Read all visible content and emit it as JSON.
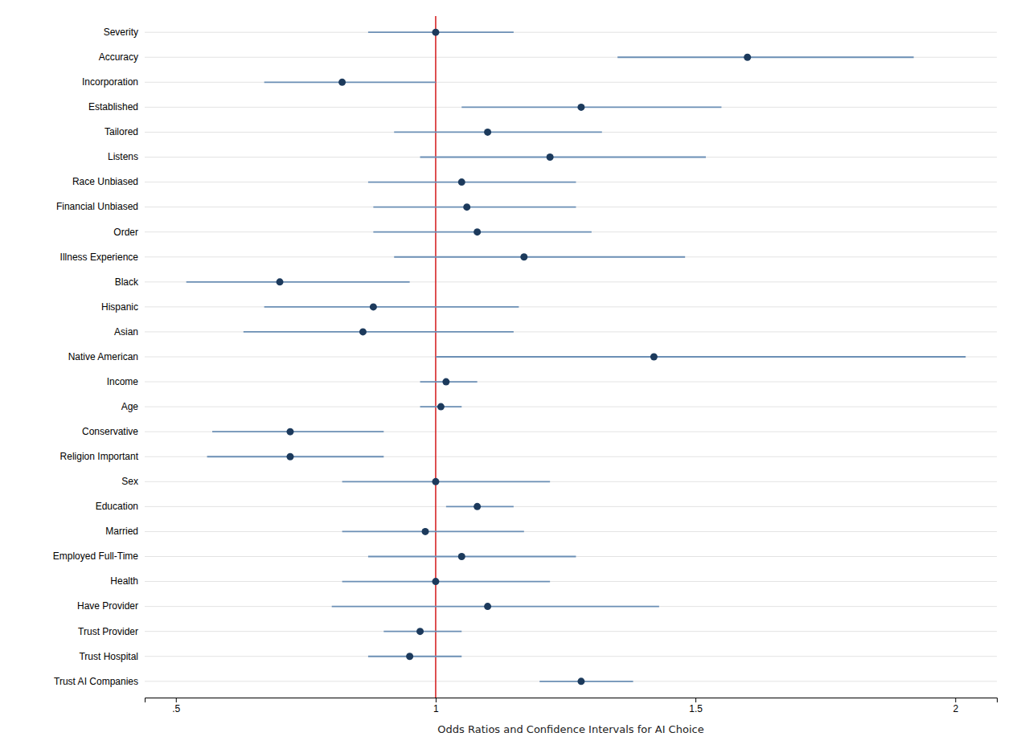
{
  "chart_data": {
    "type": "forest",
    "xlabel": "Odds Ratios and Confidence Intervals for AI Choice",
    "categories": [
      "Severity",
      "Accuracy",
      "Incorporation",
      "Established",
      "Tailored",
      "Listens",
      "Race Unbiased",
      "Financial Unbiased",
      "Order",
      "Illness Experience",
      "Black",
      "Hispanic",
      "Asian",
      "Native American",
      "Income",
      "Age",
      "Conservative",
      "Religion Important",
      "Sex",
      "Education",
      "Married",
      "Employed Full-Time",
      "Health",
      "Have Provider",
      "Trust Provider",
      "Trust Hospital",
      "Trust AI Companies"
    ],
    "values": [
      1.0,
      1.6,
      0.82,
      1.28,
      1.1,
      1.22,
      1.05,
      1.06,
      1.08,
      1.17,
      0.7,
      0.88,
      0.86,
      1.42,
      1.02,
      1.01,
      0.72,
      0.72,
      1.0,
      1.08,
      0.98,
      1.05,
      1.0,
      1.1,
      0.97,
      0.95,
      1.28
    ],
    "ci_lower": [
      0.87,
      1.35,
      0.67,
      1.05,
      0.92,
      0.97,
      0.87,
      0.88,
      0.88,
      0.92,
      0.52,
      0.67,
      0.63,
      1.0,
      0.97,
      0.97,
      0.57,
      0.56,
      0.82,
      1.02,
      0.82,
      0.87,
      0.82,
      0.8,
      0.9,
      0.87,
      1.2
    ],
    "ci_upper": [
      1.15,
      1.92,
      1.0,
      1.55,
      1.32,
      1.52,
      1.27,
      1.27,
      1.3,
      1.48,
      0.95,
      1.16,
      1.15,
      2.02,
      1.08,
      1.05,
      0.9,
      0.9,
      1.22,
      1.15,
      1.17,
      1.27,
      1.22,
      1.43,
      1.05,
      1.05,
      1.38
    ],
    "reference_line": 1.0,
    "color": "#1c3a5c",
    "xlim": [
      0.44,
      2.08
    ],
    "xticks": [
      {
        "value": 0.5,
        "label": ".5"
      },
      1,
      1.5,
      2
    ],
    "grid": true
  }
}
